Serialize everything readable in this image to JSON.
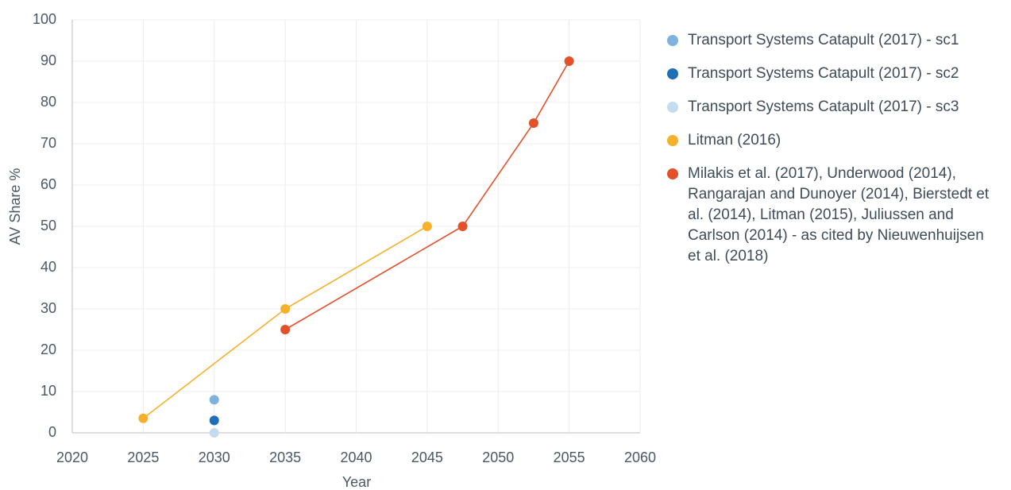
{
  "chart_data": {
    "type": "line",
    "xlabel": "Year",
    "ylabel": "AV Share %",
    "xlim": [
      2020,
      2060
    ],
    "xticks": [
      2020,
      2025,
      2030,
      2035,
      2040,
      2045,
      2050,
      2055,
      2060
    ],
    "ylim": [
      0,
      100
    ],
    "yticks": [
      0,
      10,
      20,
      30,
      40,
      50,
      60,
      70,
      80,
      90,
      100
    ],
    "grid": true,
    "legend": "right",
    "series": [
      {
        "name": "Transport Systems Catapult (2017) - sc1",
        "color": "#7fb2dc",
        "x": [
          2030
        ],
        "values": [
          8
        ]
      },
      {
        "name": "Transport Systems Catapult (2017) - sc2",
        "color": "#1f6fb5",
        "x": [
          2030
        ],
        "values": [
          3
        ]
      },
      {
        "name": "Transport Systems Catapult (2017) - sc3",
        "color": "#c5dcef",
        "x": [
          2030
        ],
        "values": [
          0
        ]
      },
      {
        "name": "Litman (2016)",
        "color": "#f5b12a",
        "x": [
          2025,
          2035,
          2045
        ],
        "values": [
          3.5,
          30,
          50
        ]
      },
      {
        "name": "Milakis et al. (2017), Underwood (2014), Rangarajan and Dunoyer (2014), Bierstedt et al. (2014), Litman (2015), Juliussen and Carlson (2014) - as cited by Nieuwenhuijsen et al. (2018)",
        "color": "#e4502a",
        "x": [
          2035,
          2047.5,
          2052.5,
          2055
        ],
        "values": [
          25,
          50,
          75,
          90
        ]
      }
    ]
  }
}
